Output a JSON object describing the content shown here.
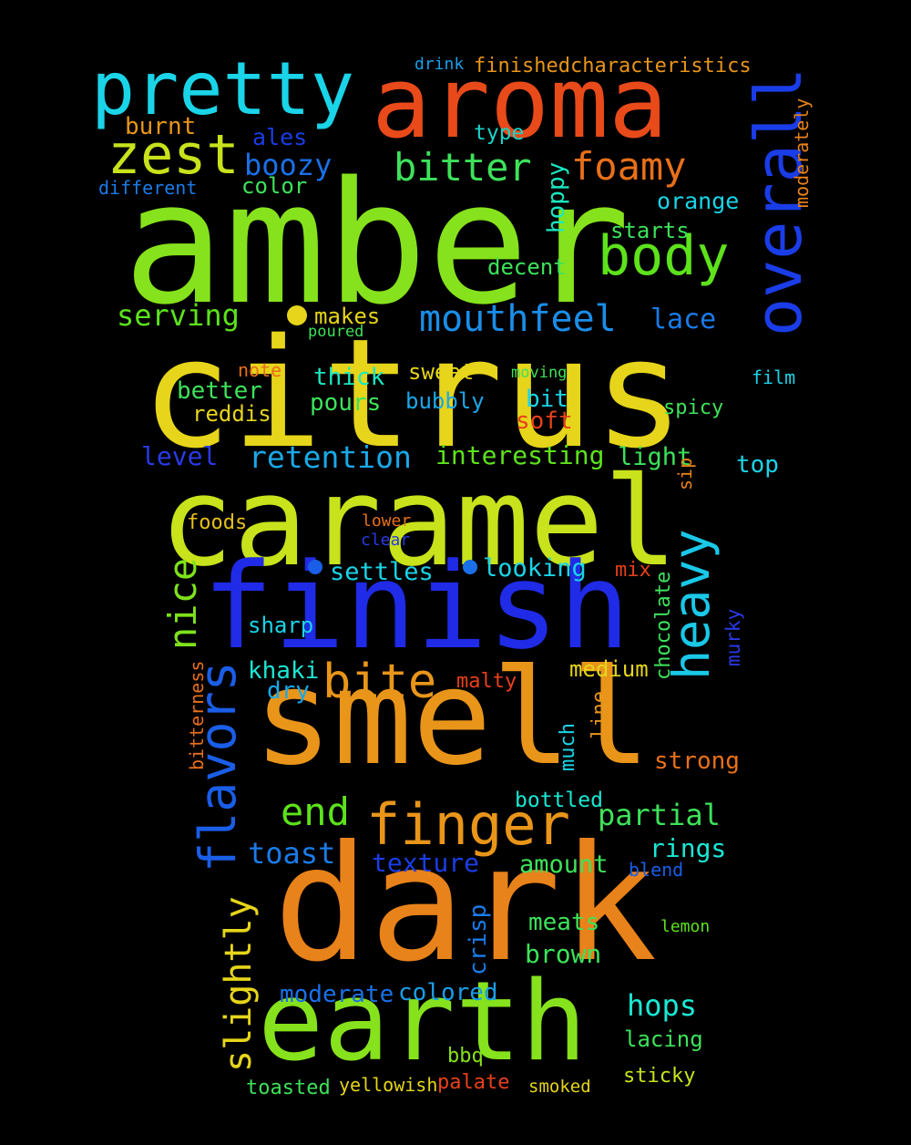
{
  "wordcloud": {
    "background": "#000000",
    "words": [
      {
        "text": "amber",
        "color": "#86e21c"
      },
      {
        "text": "citrus",
        "color": "#e6d51a"
      },
      {
        "text": "caramel",
        "color": "#c8e21c"
      },
      {
        "text": "finish",
        "color": "#1f2be6"
      },
      {
        "text": "smell",
        "color": "#e8951a"
      },
      {
        "text": "dark",
        "color": "#e8821a"
      },
      {
        "text": "aroma",
        "color": "#e84a1a"
      },
      {
        "text": "pretty",
        "color": "#1ad4e8"
      },
      {
        "text": "earth",
        "color": "#86e21c"
      },
      {
        "text": "overall",
        "color": "#1a3de8"
      },
      {
        "text": "zest",
        "color": "#c8e21c"
      },
      {
        "text": "body",
        "color": "#5de21c"
      },
      {
        "text": "bitter",
        "color": "#3de25a"
      },
      {
        "text": "foamy",
        "color": "#e8701a"
      },
      {
        "text": "mouthfeel",
        "color": "#1a8ee8"
      },
      {
        "text": "heavy",
        "color": "#1ac8e8"
      },
      {
        "text": "flavors",
        "color": "#1a5ee8"
      },
      {
        "text": "bite",
        "color": "#e8951a"
      },
      {
        "text": "finger",
        "color": "#e8951a"
      },
      {
        "text": "end",
        "color": "#5de21c"
      },
      {
        "text": "nice",
        "color": "#7ee21c"
      },
      {
        "text": "slightly",
        "color": "#e6d51a"
      },
      {
        "text": "serving",
        "color": "#5de21c"
      },
      {
        "text": "retention",
        "color": "#1aa8e8"
      },
      {
        "text": "toast",
        "color": "#1a7be8"
      },
      {
        "text": "partial",
        "color": "#3de25a"
      },
      {
        "text": "hops",
        "color": "#1ae8d4"
      },
      {
        "text": "boozy",
        "color": "#1a70e8"
      },
      {
        "text": "burnt",
        "color": "#e8951a"
      },
      {
        "text": "ales",
        "color": "#1a3de8"
      },
      {
        "text": "color",
        "color": "#3de25a"
      },
      {
        "text": "type",
        "color": "#1ad4c8"
      },
      {
        "text": "drink",
        "color": "#1a9ee8"
      },
      {
        "text": "finishedcharacteristics",
        "color": "#e8951a"
      },
      {
        "text": "different",
        "color": "#1a7be8"
      },
      {
        "text": "hoppy",
        "color": "#1ae8c0"
      },
      {
        "text": "orange",
        "color": "#1ad4e8"
      },
      {
        "text": "starts",
        "color": "#3de25a"
      },
      {
        "text": "decent",
        "color": "#3de25a"
      },
      {
        "text": "moderately",
        "color": "#e8821a"
      },
      {
        "text": "makes",
        "color": "#e6d51a"
      },
      {
        "text": "poured",
        "color": "#3de25a"
      },
      {
        "text": "lace",
        "color": "#1a7be8"
      },
      {
        "text": "note",
        "color": "#e8701a"
      },
      {
        "text": "thick",
        "color": "#1ae8c0"
      },
      {
        "text": "sweet",
        "color": "#e6d51a"
      },
      {
        "text": "moving",
        "color": "#3de25a"
      },
      {
        "text": "film",
        "color": "#1ad4e8"
      },
      {
        "text": "better",
        "color": "#3de25a"
      },
      {
        "text": "pours",
        "color": "#3de25a"
      },
      {
        "text": "bubbly",
        "color": "#1aa8e8"
      },
      {
        "text": "bit",
        "color": "#1ad4e8"
      },
      {
        "text": "reddish",
        "color": "#e6d51a"
      },
      {
        "text": "soft",
        "color": "#e8401a"
      },
      {
        "text": "spicy",
        "color": "#3de25a"
      },
      {
        "text": "level",
        "color": "#2a3ae8"
      },
      {
        "text": "interesting",
        "color": "#5de21c"
      },
      {
        "text": "light",
        "color": "#3de25a"
      },
      {
        "text": "top",
        "color": "#1ad4e8"
      },
      {
        "text": "sip",
        "color": "#e8821a"
      },
      {
        "text": "foods",
        "color": "#e6c01a"
      },
      {
        "text": "lower",
        "color": "#e8701a"
      },
      {
        "text": "clear",
        "color": "#2a3ae8"
      },
      {
        "text": "settles",
        "color": "#1ad4e8"
      },
      {
        "text": "looking",
        "color": "#1ad4e8"
      },
      {
        "text": "mix",
        "color": "#e8401a"
      },
      {
        "text": "chocolate",
        "color": "#3de25a"
      },
      {
        "text": "sharp",
        "color": "#1ad4e8"
      },
      {
        "text": "murky",
        "color": "#2a3ae8"
      },
      {
        "text": "khaki",
        "color": "#1ae8d4"
      },
      {
        "text": "dry",
        "color": "#1aa8e8"
      },
      {
        "text": "medium",
        "color": "#e6d51a"
      },
      {
        "text": "malty",
        "color": "#e8401a"
      },
      {
        "text": "bitterness",
        "color": "#e8701a"
      },
      {
        "text": "line",
        "color": "#e8951a"
      },
      {
        "text": "much",
        "color": "#1ad4e8"
      },
      {
        "text": "strong",
        "color": "#e8701a"
      },
      {
        "text": "bottled",
        "color": "#1ae8d4"
      },
      {
        "text": "texture",
        "color": "#1a3de8"
      },
      {
        "text": "amount",
        "color": "#3de25a"
      },
      {
        "text": "rings",
        "color": "#1ae8d4"
      },
      {
        "text": "blend",
        "color": "#1a5ee8"
      },
      {
        "text": "crisp",
        "color": "#1a7be8"
      },
      {
        "text": "meats",
        "color": "#3de25a"
      },
      {
        "text": "lemon",
        "color": "#5de21c"
      },
      {
        "text": "brown",
        "color": "#3de25a"
      },
      {
        "text": "moderate",
        "color": "#1a70e8"
      },
      {
        "text": "colored",
        "color": "#1a9ee8"
      },
      {
        "text": "lacing",
        "color": "#3de25a"
      },
      {
        "text": "bbq",
        "color": "#86e21c"
      },
      {
        "text": "sticky",
        "color": "#c8e21c"
      },
      {
        "text": "toasted",
        "color": "#3de25a"
      },
      {
        "text": "yellowish",
        "color": "#e6d51a"
      },
      {
        "text": "palate",
        "color": "#e8401a"
      },
      {
        "text": "smoked",
        "color": "#e6d51a"
      }
    ],
    "dots": [
      {
        "color": "#e6d51a"
      },
      {
        "color": "#1a5ee8"
      },
      {
        "color": "#1a70e8"
      }
    ]
  }
}
